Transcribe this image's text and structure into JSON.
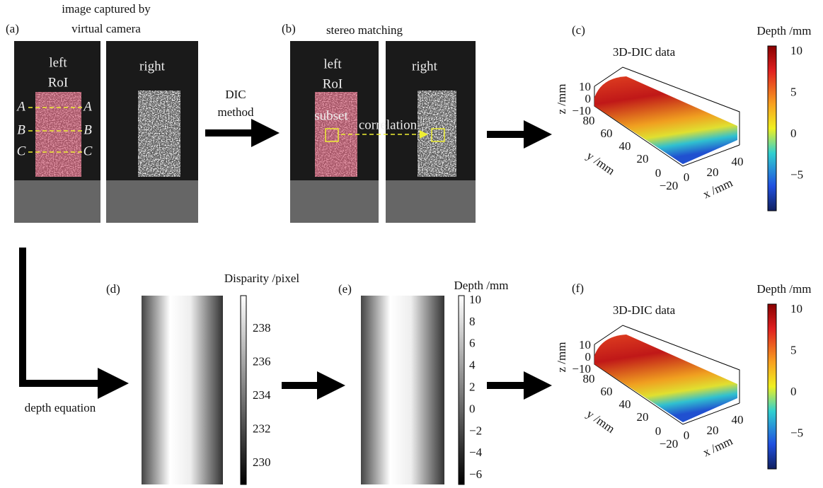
{
  "panel_a": {
    "label": "(a)",
    "title": [
      "image captured by",
      "virtual camera"
    ],
    "left": [
      "left",
      "RoI"
    ],
    "right": "right",
    "sections": [
      "A",
      "A",
      "B",
      "B",
      "C",
      "C"
    ]
  },
  "step_1": [
    "DIC",
    "method"
  ],
  "panel_b": {
    "label": "(b)",
    "title": "stereo matching",
    "left": [
      "left",
      "RoI"
    ],
    "right": "right",
    "subset": "subset",
    "correlation": "correlation"
  },
  "panel_c": {
    "label": "(c)",
    "title": "3D-DIC data",
    "colorbar_label": "Depth /mm",
    "colorbar_ticks": [
      "10",
      "5",
      "0",
      "−5"
    ],
    "z_label": "z /mm",
    "z_ticks": [
      "10",
      "0",
      "−10"
    ],
    "y_label": "y /mm",
    "y_ticks": [
      "80",
      "60",
      "40",
      "20",
      "0",
      "−20"
    ],
    "x_label": "x /mm",
    "x_ticks": [
      "0",
      "20",
      "40"
    ]
  },
  "panel_d": {
    "label": "(d)",
    "colorbar_label": "Disparity /pixel",
    "colorbar_ticks": [
      "238",
      "236",
      "234",
      "232",
      "230"
    ]
  },
  "panel_e": {
    "label": "(e)",
    "colorbar_label": "Depth /mm",
    "colorbar_ticks": [
      "10",
      "8",
      "6",
      "4",
      "2",
      "0",
      "−2",
      "−4",
      "−6"
    ]
  },
  "panel_f": {
    "label": "(f)",
    "title": "3D-DIC data",
    "colorbar_label": "Depth /mm",
    "colorbar_ticks": [
      "10",
      "5",
      "0",
      "−5"
    ],
    "z_label": "z /mm",
    "z_ticks": [
      "10",
      "0",
      "−10"
    ],
    "y_label": "y /mm",
    "y_ticks": [
      "80",
      "60",
      "40",
      "20",
      "0",
      "−20"
    ],
    "x_label": "x /mm",
    "x_ticks": [
      "0",
      "20",
      "40"
    ]
  },
  "step_2": "depth equation"
}
